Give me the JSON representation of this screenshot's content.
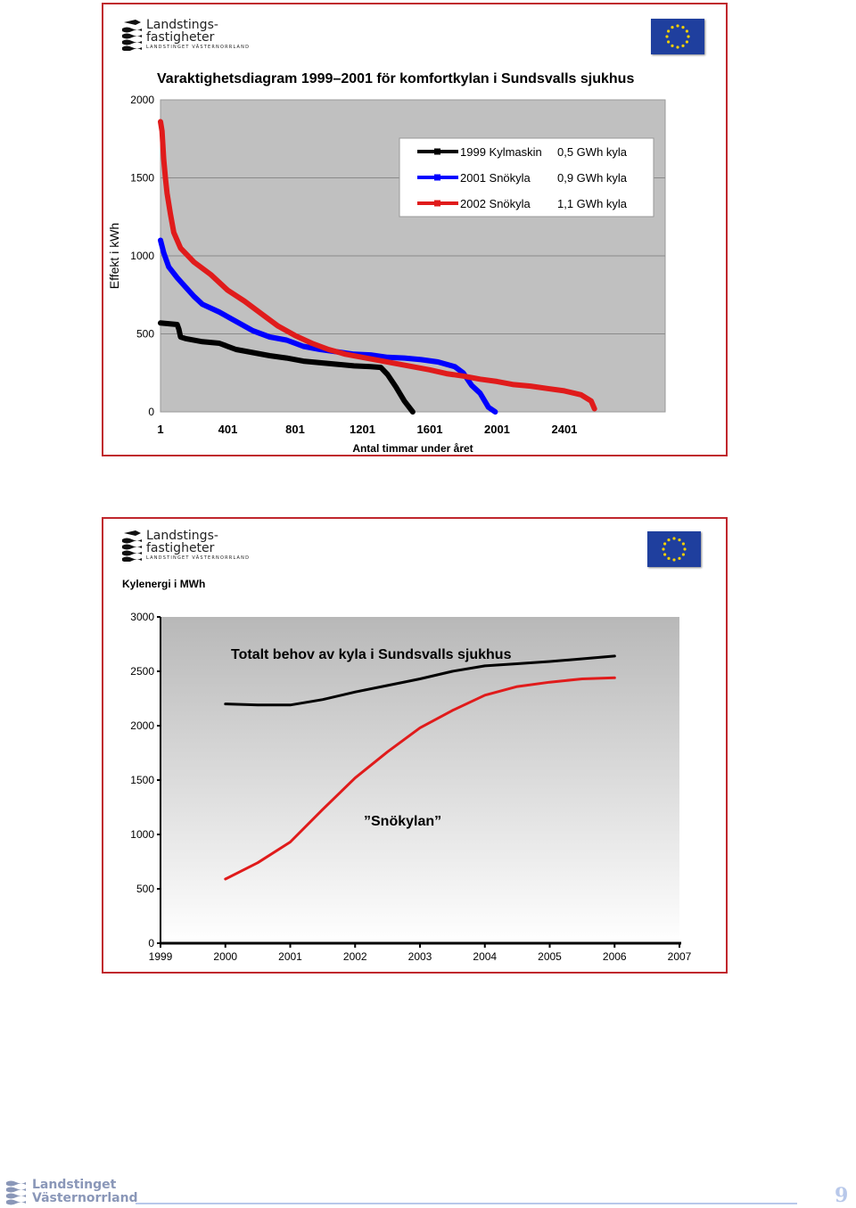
{
  "logo": {
    "line1": "Landstings-",
    "line2": "fastigheter",
    "tagline": "LANDSTINGET VÄSTERNORRLAND"
  },
  "colors": {
    "frame": "#c0272d",
    "eu_blue": "#1f3f9e",
    "eu_star": "#f5d000",
    "series_1999": "#000000",
    "series_2001": "#0000ff",
    "series_2002": "#e01b1b",
    "plot_bg": "#c0c0c0"
  },
  "chart1": {
    "chart_data": {
      "type": "line",
      "title": "Varaktighetsdiagram 1999–2001 för komfortkylan i Sundsvalls sjukhus",
      "xlabel": "Antal timmar under året",
      "ylabel": "Effekt i kWh",
      "xlim": [
        1,
        3000
      ],
      "ylim": [
        0,
        2000
      ],
      "x_ticks": [
        "1",
        "401",
        "801",
        "1201",
        "1601",
        "2001",
        "2401"
      ],
      "y_ticks": [
        "0",
        "500",
        "1000",
        "1500",
        "2000"
      ],
      "grid": "horizontal",
      "legend_position": "top-right",
      "series": [
        {
          "name": "1999  Kylmaskin",
          "note": "0,5 GWh kyla",
          "color": "#000000",
          "points": [
            [
              1,
              570
            ],
            [
              50,
              565
            ],
            [
              100,
              560
            ],
            [
              110,
              530
            ],
            [
              120,
              480
            ],
            [
              150,
              470
            ],
            [
              250,
              450
            ],
            [
              350,
              440
            ],
            [
              450,
              400
            ],
            [
              550,
              380
            ],
            [
              650,
              360
            ],
            [
              750,
              345
            ],
            [
              850,
              325
            ],
            [
              950,
              315
            ],
            [
              1050,
              305
            ],
            [
              1150,
              295
            ],
            [
              1250,
              290
            ],
            [
              1310,
              285
            ],
            [
              1350,
              240
            ],
            [
              1400,
              160
            ],
            [
              1450,
              70
            ],
            [
              1500,
              0
            ]
          ]
        },
        {
          "name": "2001 Snökyla",
          "note": "0,9 GWh kyla",
          "color": "#0000ff",
          "points": [
            [
              1,
              1100
            ],
            [
              20,
              1020
            ],
            [
              50,
              930
            ],
            [
              100,
              860
            ],
            [
              150,
              800
            ],
            [
              200,
              740
            ],
            [
              250,
              690
            ],
            [
              350,
              640
            ],
            [
              450,
              580
            ],
            [
              550,
              520
            ],
            [
              650,
              480
            ],
            [
              750,
              460
            ],
            [
              850,
              420
            ],
            [
              950,
              400
            ],
            [
              1050,
              385
            ],
            [
              1150,
              370
            ],
            [
              1250,
              365
            ],
            [
              1350,
              350
            ],
            [
              1450,
              345
            ],
            [
              1550,
              335
            ],
            [
              1650,
              320
            ],
            [
              1750,
              290
            ],
            [
              1800,
              250
            ],
            [
              1850,
              170
            ],
            [
              1900,
              120
            ],
            [
              1950,
              30
            ],
            [
              1990,
              0
            ]
          ]
        },
        {
          "name": "2002 Snökyla",
          "note": "1,1 GWh kyla",
          "color": "#e01b1b",
          "points": [
            [
              1,
              1860
            ],
            [
              10,
              1800
            ],
            [
              20,
              1620
            ],
            [
              30,
              1500
            ],
            [
              40,
              1400
            ],
            [
              60,
              1270
            ],
            [
              80,
              1150
            ],
            [
              120,
              1050
            ],
            [
              200,
              960
            ],
            [
              300,
              880
            ],
            [
              400,
              780
            ],
            [
              500,
              710
            ],
            [
              600,
              630
            ],
            [
              700,
              550
            ],
            [
              800,
              490
            ],
            [
              900,
              440
            ],
            [
              1000,
              400
            ],
            [
              1100,
              370
            ],
            [
              1200,
              350
            ],
            [
              1300,
              330
            ],
            [
              1400,
              310
            ],
            [
              1500,
              290
            ],
            [
              1600,
              270
            ],
            [
              1700,
              245
            ],
            [
              1800,
              230
            ],
            [
              1900,
              210
            ],
            [
              2000,
              195
            ],
            [
              2100,
              175
            ],
            [
              2200,
              165
            ],
            [
              2300,
              150
            ],
            [
              2400,
              135
            ],
            [
              2500,
              110
            ],
            [
              2560,
              70
            ],
            [
              2580,
              20
            ]
          ]
        }
      ]
    }
  },
  "chart2": {
    "chart_data": {
      "type": "line",
      "title": "",
      "ylabel": "Kylenergi i MWh",
      "categories": [
        "1999",
        "2000",
        "2001",
        "2002",
        "2003",
        "2004",
        "2005",
        "2006",
        "2007"
      ],
      "y_ticks": [
        "0",
        "500",
        "1000",
        "1500",
        "2000",
        "2500",
        "3000"
      ],
      "ylim": [
        0,
        3000
      ],
      "grid": "none",
      "annotations": [
        "Totalt behov av kyla i Sundsvalls sjukhus",
        "”Snökylan”"
      ],
      "series": [
        {
          "annotation_index": 0,
          "color": "#000000",
          "points": [
            [
              2000,
              2200
            ],
            [
              2000.5,
              2190
            ],
            [
              2001,
              2190
            ],
            [
              2001.5,
              2240
            ],
            [
              2002,
              2310
            ],
            [
              2002.5,
              2370
            ],
            [
              2003,
              2430
            ],
            [
              2003.5,
              2500
            ],
            [
              2004,
              2550
            ],
            [
              2004.5,
              2570
            ],
            [
              2005,
              2590
            ],
            [
              2005.5,
              2615
            ],
            [
              2006,
              2640
            ]
          ]
        },
        {
          "annotation_index": 1,
          "color": "#e01b1b",
          "points": [
            [
              2000,
              590
            ],
            [
              2000.5,
              740
            ],
            [
              2001,
              930
            ],
            [
              2001.5,
              1230
            ],
            [
              2002,
              1520
            ],
            [
              2002.5,
              1760
            ],
            [
              2003,
              1980
            ],
            [
              2003.5,
              2140
            ],
            [
              2004,
              2280
            ],
            [
              2004.5,
              2360
            ],
            [
              2005,
              2400
            ],
            [
              2005.5,
              2430
            ],
            [
              2006,
              2440
            ]
          ]
        }
      ]
    }
  },
  "footer": {
    "line1": "Landstinget",
    "line2": "Västernorrland",
    "page_number": "9"
  }
}
